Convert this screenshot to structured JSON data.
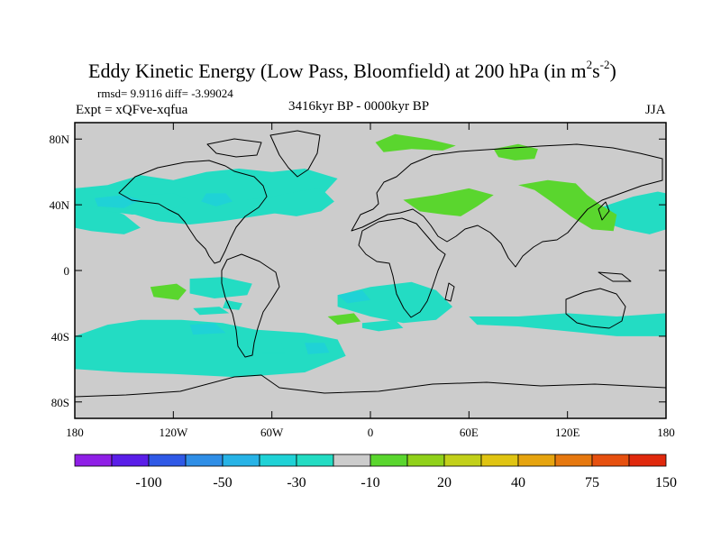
{
  "title": {
    "main": "Eddy Kinetic Energy (Low Pass, Bloomfield) at 200 hPa (in m",
    "sup1": "2",
    "mid": "s",
    "sup2": "-2",
    "close": ")"
  },
  "stats": "rmsd= 9.9116 diff= -3.99024",
  "experiment": "Expt = xQFve-xqfua",
  "period": "3416kyr BP - 0000kyr BP",
  "season": "JJA",
  "chart_data": {
    "type": "heatmap",
    "projection": "cylindrical-equidistant",
    "xlim": [
      -180,
      180
    ],
    "ylim": [
      -90,
      90
    ],
    "x_ticks": [
      {
        "value": -180,
        "label": "180"
      },
      {
        "value": -120,
        "label": "120W"
      },
      {
        "value": -60,
        "label": "60W"
      },
      {
        "value": 0,
        "label": "0"
      },
      {
        "value": 60,
        "label": "60E"
      },
      {
        "value": 120,
        "label": "120E"
      },
      {
        "value": 180,
        "label": "180"
      }
    ],
    "y_ticks": [
      {
        "value": 80,
        "label": "80N"
      },
      {
        "value": 40,
        "label": "40N"
      },
      {
        "value": 0,
        "label": "0"
      },
      {
        "value": -40,
        "label": "40S"
      },
      {
        "value": -80,
        "label": "80S"
      }
    ],
    "colorbar": {
      "colors": [
        "#8f1fe6",
        "#5a1ee8",
        "#2f59e6",
        "#2f8ee6",
        "#27b3e6",
        "#1fd2d6",
        "#23dcc3",
        "#cccccc",
        "#5ad62e",
        "#90d11a",
        "#c2d01a",
        "#e0c412",
        "#e6a40f",
        "#e6780f",
        "#e6500f",
        "#e0290d"
      ],
      "labels": [
        {
          "after_box": 1,
          "text": "-100"
        },
        {
          "after_box": 3,
          "text": "-50"
        },
        {
          "after_box": 5,
          "text": "-30"
        },
        {
          "after_box": 7,
          "text": "-10"
        },
        {
          "after_box": 9,
          "text": "20"
        },
        {
          "after_box": 11,
          "text": "40"
        },
        {
          "after_box": 13,
          "text": "75"
        },
        {
          "after_box": 15,
          "text": "150"
        }
      ]
    },
    "background_color": "#cccccc",
    "regions": [
      {
        "level": "-30 to -10",
        "color": "#23dcc3",
        "lonlat": [
          [
            -180,
            50
          ],
          [
            -160,
            52
          ],
          [
            -140,
            58
          ],
          [
            -120,
            55
          ],
          [
            -100,
            60
          ],
          [
            -80,
            62
          ],
          [
            -60,
            60
          ],
          [
            -40,
            62
          ],
          [
            -20,
            56
          ],
          [
            -30,
            45
          ],
          [
            -50,
            36
          ],
          [
            -70,
            33
          ],
          [
            -90,
            30
          ],
          [
            -110,
            28
          ],
          [
            -130,
            30
          ],
          [
            -150,
            36
          ],
          [
            -170,
            38
          ],
          [
            -180,
            40
          ]
        ]
      },
      {
        "level": "-30 to -10",
        "color": "#23dcc3",
        "lonlat": [
          [
            -180,
            40
          ],
          [
            -160,
            38
          ],
          [
            -150,
            34
          ],
          [
            -140,
            26
          ],
          [
            -150,
            22
          ],
          [
            -170,
            24
          ],
          [
            -180,
            26
          ]
        ]
      },
      {
        "level": "-30 to -10",
        "color": "#23dcc3",
        "lonlat": [
          [
            -80,
            36
          ],
          [
            -60,
            35
          ],
          [
            -45,
            33
          ],
          [
            -30,
            36
          ],
          [
            -22,
            42
          ],
          [
            -30,
            50
          ],
          [
            -45,
            48
          ],
          [
            -60,
            45
          ],
          [
            -75,
            43
          ]
        ]
      },
      {
        "level": "-30 to -10",
        "color": "#23dcc3",
        "lonlat": [
          [
            -158,
            42
          ],
          [
            -138,
            46
          ],
          [
            -120,
            47
          ],
          [
            -110,
            43
          ],
          [
            -125,
            35
          ],
          [
            -145,
            34
          ],
          [
            -160,
            36
          ]
        ]
      },
      {
        "level": "-30 to -10",
        "color": "#23dcc3",
        "lonlat": [
          [
            130,
            35
          ],
          [
            145,
            40
          ],
          [
            160,
            45
          ],
          [
            175,
            48
          ],
          [
            180,
            47
          ],
          [
            180,
            25
          ],
          [
            170,
            22
          ],
          [
            155,
            25
          ],
          [
            140,
            30
          ]
        ]
      },
      {
        "level": "-30 to -10",
        "color": "#23dcc3",
        "lonlat": [
          [
            -110,
            -5
          ],
          [
            -90,
            -4
          ],
          [
            -72,
            -8
          ],
          [
            -75,
            -15
          ],
          [
            -95,
            -17
          ],
          [
            -110,
            -14
          ]
        ]
      },
      {
        "level": "-30 to -10",
        "color": "#23dcc3",
        "lonlat": [
          [
            -88,
            -18
          ],
          [
            -78,
            -20
          ],
          [
            -80,
            -24
          ],
          [
            -90,
            -23
          ]
        ]
      },
      {
        "level": "-30 to -10",
        "color": "#23dcc3",
        "lonlat": [
          [
            -20,
            -15
          ],
          [
            0,
            -10
          ],
          [
            25,
            -7
          ],
          [
            40,
            -12
          ],
          [
            50,
            -22
          ],
          [
            40,
            -30
          ],
          [
            20,
            -32
          ],
          [
            0,
            -28
          ],
          [
            -20,
            -22
          ]
        ]
      },
      {
        "level": "-30 to -10",
        "color": "#23dcc3",
        "lonlat": [
          [
            -5,
            -32
          ],
          [
            15,
            -30
          ],
          [
            20,
            -35
          ],
          [
            5,
            -37
          ],
          [
            -5,
            -35
          ]
        ]
      },
      {
        "level": "-30 to -10",
        "color": "#23dcc3",
        "lonlat": [
          [
            -180,
            -40
          ],
          [
            -160,
            -33
          ],
          [
            -140,
            -30
          ],
          [
            -115,
            -30
          ],
          [
            -90,
            -32
          ],
          [
            -70,
            -36
          ],
          [
            -40,
            -38
          ],
          [
            -20,
            -42
          ],
          [
            -15,
            -52
          ],
          [
            -40,
            -62
          ],
          [
            -80,
            -65
          ],
          [
            -120,
            -63
          ],
          [
            -150,
            -62
          ],
          [
            -180,
            -60
          ]
        ]
      },
      {
        "level": "-30 to -10",
        "color": "#23dcc3",
        "lonlat": [
          [
            60,
            -28
          ],
          [
            90,
            -28
          ],
          [
            120,
            -26
          ],
          [
            150,
            -28
          ],
          [
            180,
            -26
          ],
          [
            180,
            -40
          ],
          [
            150,
            -40
          ],
          [
            120,
            -37
          ],
          [
            90,
            -34
          ],
          [
            65,
            -33
          ]
        ]
      },
      {
        "level": "-30 to -10",
        "color": "#23dcc3",
        "lonlat": [
          [
            -108,
            -23
          ],
          [
            -92,
            -22
          ],
          [
            -86,
            -26
          ],
          [
            -104,
            -27
          ]
        ]
      },
      {
        "level": "-30 to -10",
        "color": "#23dcc3",
        "lonlat": [
          [
            -70,
            -42
          ],
          [
            -55,
            -42
          ],
          [
            -52,
            -50
          ],
          [
            -66,
            -50
          ]
        ]
      },
      {
        "level": "-50 to -30",
        "color": "#1fd2d6",
        "lonlat": [
          [
            -168,
            44
          ],
          [
            -150,
            46
          ],
          [
            -140,
            43
          ],
          [
            -150,
            38
          ],
          [
            -166,
            39
          ]
        ]
      },
      {
        "level": "-50 to -30",
        "color": "#1fd2d6",
        "lonlat": [
          [
            -100,
            47
          ],
          [
            -88,
            47
          ],
          [
            -84,
            42
          ],
          [
            -94,
            39
          ],
          [
            -103,
            42
          ]
        ]
      },
      {
        "level": "-50 to -30",
        "color": "#1fd2d6",
        "lonlat": [
          [
            -20,
            -15
          ],
          [
            -5,
            -12
          ],
          [
            0,
            -18
          ],
          [
            -14,
            -20
          ]
        ]
      },
      {
        "level": "-50 to -30",
        "color": "#1fd2d6",
        "lonlat": [
          [
            -110,
            -33
          ],
          [
            -95,
            -32
          ],
          [
            -88,
            -38
          ],
          [
            -108,
            -39
          ]
        ]
      },
      {
        "level": "-50 to -30",
        "color": "#1fd2d6",
        "lonlat": [
          [
            -40,
            -44
          ],
          [
            -28,
            -44
          ],
          [
            -25,
            -50
          ],
          [
            -38,
            -51
          ]
        ]
      },
      {
        "level": "10 to 20",
        "color": "#5ad62e",
        "lonlat": [
          [
            3,
            78
          ],
          [
            15,
            83
          ],
          [
            35,
            80
          ],
          [
            52,
            76
          ],
          [
            44,
            73
          ],
          [
            25,
            74
          ],
          [
            8,
            72
          ]
        ]
      },
      {
        "level": "10 to 20",
        "color": "#5ad62e",
        "lonlat": [
          [
            75,
            74
          ],
          [
            90,
            77
          ],
          [
            102,
            74
          ],
          [
            100,
            68
          ],
          [
            88,
            67
          ],
          [
            78,
            69
          ]
        ]
      },
      {
        "level": "10 to 20",
        "color": "#5ad62e",
        "lonlat": [
          [
            20,
            43
          ],
          [
            40,
            46
          ],
          [
            60,
            50
          ],
          [
            75,
            46
          ],
          [
            65,
            39
          ],
          [
            55,
            33
          ],
          [
            45,
            34
          ],
          [
            30,
            36
          ]
        ]
      },
      {
        "level": "10 to 20",
        "color": "#5ad62e",
        "lonlat": [
          [
            90,
            52
          ],
          [
            108,
            55
          ],
          [
            125,
            53
          ],
          [
            132,
            46
          ],
          [
            140,
            40
          ],
          [
            150,
            34
          ],
          [
            148,
            24
          ],
          [
            135,
            25
          ],
          [
            122,
            33
          ],
          [
            110,
            42
          ],
          [
            100,
            49
          ]
        ]
      },
      {
        "level": "10 to 20",
        "color": "#5ad62e",
        "lonlat": [
          [
            -134,
            -10
          ],
          [
            -118,
            -8
          ],
          [
            -112,
            -12
          ],
          [
            -117,
            -18
          ],
          [
            -132,
            -16
          ]
        ]
      },
      {
        "level": "10 to 20",
        "color": "#5ad62e",
        "lonlat": [
          [
            -26,
            -28
          ],
          [
            -10,
            -26
          ],
          [
            -6,
            -31
          ],
          [
            -20,
            -33
          ]
        ]
      }
    ]
  }
}
